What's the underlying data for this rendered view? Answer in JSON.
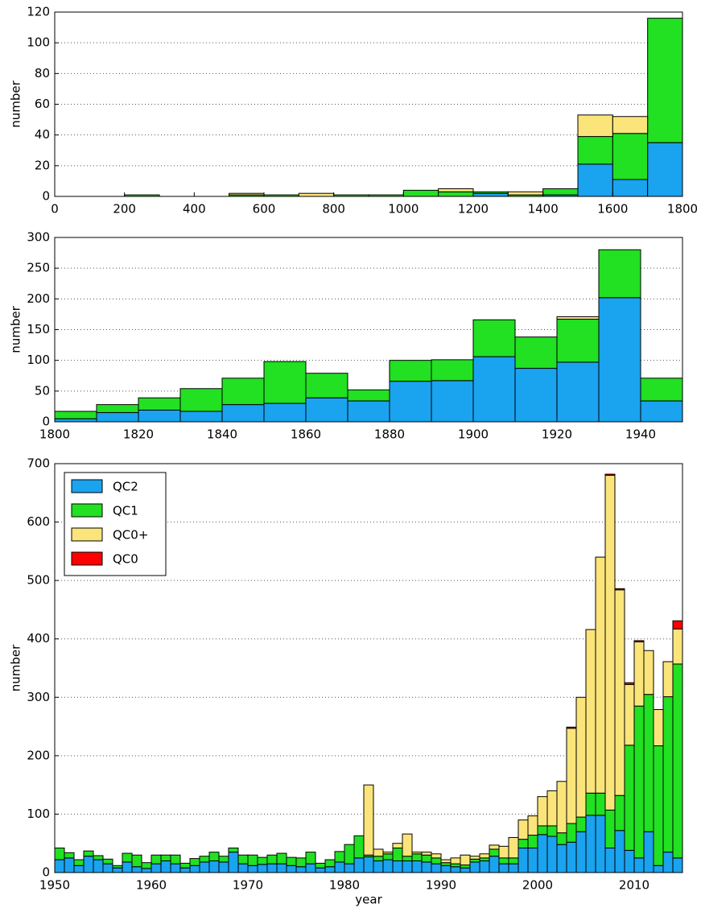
{
  "chart_data": [
    {
      "type": "histogram",
      "ylabel": "number",
      "bins": [
        0,
        100,
        200,
        300,
        400,
        500,
        600,
        700,
        800,
        900,
        1000,
        1100,
        1200,
        1300,
        1400,
        1500,
        1600,
        1700,
        1800
      ],
      "series": [
        {
          "color": "#1aa3ef",
          "values": [
            0,
            0,
            0,
            0,
            0,
            0,
            0,
            0,
            0,
            0,
            0,
            0,
            2,
            0,
            1,
            21,
            11,
            35
          ]
        },
        {
          "color": "#22e022",
          "values": [
            0,
            0,
            1,
            0,
            0,
            1,
            1,
            0,
            1,
            1,
            4,
            3,
            1,
            1,
            4,
            18,
            30,
            81
          ]
        },
        {
          "color": "#fbe57a",
          "values": [
            0,
            0,
            0,
            0,
            0,
            1,
            0,
            2,
            0,
            0,
            0,
            2,
            0,
            2,
            0,
            14,
            11,
            0
          ]
        }
      ],
      "xlim": [
        0,
        1800
      ],
      "xticks": [
        0,
        200,
        400,
        600,
        800,
        1000,
        1200,
        1400,
        1600,
        1800
      ],
      "ylim": [
        0,
        120
      ],
      "yticks": [
        0,
        20,
        40,
        60,
        80,
        100,
        120
      ],
      "grid": true
    },
    {
      "type": "histogram",
      "ylabel": "number",
      "bins": [
        1800,
        1810,
        1820,
        1830,
        1840,
        1850,
        1860,
        1870,
        1880,
        1890,
        1900,
        1910,
        1920,
        1930,
        1940,
        1950
      ],
      "series": [
        {
          "color": "#1aa3ef",
          "values": [
            5,
            15,
            19,
            17,
            28,
            30,
            39,
            34,
            66,
            67,
            106,
            87,
            97,
            202,
            34
          ]
        },
        {
          "color": "#22e022",
          "values": [
            12,
            13,
            20,
            37,
            43,
            68,
            40,
            18,
            34,
            34,
            60,
            51,
            70,
            78,
            37
          ]
        },
        {
          "color": "#fbe57a",
          "values": [
            0,
            0,
            0,
            0,
            0,
            0,
            0,
            0,
            0,
            0,
            0,
            0,
            4,
            0,
            0
          ]
        }
      ],
      "xlim": [
        1800,
        1950
      ],
      "xticks": [
        1800,
        1820,
        1840,
        1860,
        1880,
        1900,
        1920,
        1940
      ],
      "ylim": [
        0,
        300
      ],
      "yticks": [
        0,
        50,
        100,
        150,
        200,
        250,
        300
      ],
      "grid": true
    },
    {
      "type": "histogram",
      "ylabel": "number",
      "xlabel": "year",
      "legend": "upper left",
      "bins": [
        1950,
        1951,
        1952,
        1953,
        1954,
        1955,
        1956,
        1957,
        1958,
        1959,
        1960,
        1961,
        1962,
        1963,
        1964,
        1965,
        1966,
        1967,
        1968,
        1969,
        1970,
        1971,
        1972,
        1973,
        1974,
        1975,
        1976,
        1977,
        1978,
        1979,
        1980,
        1981,
        1982,
        1983,
        1984,
        1985,
        1986,
        1987,
        1988,
        1989,
        1990,
        1991,
        1992,
        1993,
        1994,
        1995,
        1996,
        1997,
        1998,
        1999,
        2000,
        2001,
        2002,
        2003,
        2004,
        2005,
        2006,
        2007,
        2008,
        2009,
        2010,
        2011,
        2012,
        2013,
        2014,
        2015
      ],
      "series": [
        {
          "name": "QC2",
          "color": "#1aa3ef",
          "values": [
            22,
            25,
            12,
            28,
            22,
            15,
            8,
            18,
            10,
            7,
            15,
            20,
            15,
            8,
            12,
            18,
            20,
            18,
            35,
            15,
            12,
            14,
            15,
            15,
            12,
            10,
            15,
            8,
            10,
            18,
            15,
            25,
            27,
            20,
            22,
            20,
            20,
            20,
            18,
            15,
            12,
            10,
            8,
            18,
            20,
            28,
            15,
            15,
            42,
            42,
            65,
            62,
            48,
            52,
            70,
            98,
            98,
            42,
            72,
            38,
            25,
            70,
            12,
            35,
            25
          ]
        },
        {
          "name": "QC1",
          "color": "#22e022",
          "values": [
            20,
            9,
            10,
            9,
            7,
            8,
            4,
            15,
            20,
            10,
            15,
            10,
            15,
            8,
            12,
            10,
            15,
            10,
            7,
            15,
            18,
            12,
            15,
            18,
            14,
            15,
            20,
            8,
            12,
            18,
            33,
            38,
            3,
            8,
            10,
            22,
            8,
            12,
            12,
            10,
            5,
            5,
            5,
            5,
            5,
            12,
            10,
            10,
            15,
            22,
            15,
            18,
            20,
            32,
            25,
            38,
            38,
            65,
            60,
            180,
            260,
            235,
            205,
            266,
            332
          ]
        },
        {
          "name": "QC0+",
          "color": "#fbe57a",
          "values": [
            0,
            0,
            0,
            0,
            0,
            0,
            0,
            0,
            0,
            0,
            0,
            0,
            0,
            0,
            0,
            0,
            0,
            0,
            0,
            0,
            0,
            0,
            0,
            0,
            0,
            0,
            0,
            0,
            0,
            0,
            0,
            0,
            120,
            12,
            3,
            8,
            38,
            3,
            5,
            7,
            5,
            10,
            17,
            5,
            7,
            7,
            20,
            35,
            33,
            33,
            50,
            60,
            88,
            163,
            205,
            280,
            404,
            573,
            352,
            104,
            110,
            75,
            62,
            60,
            60
          ]
        },
        {
          "name": "QC0",
          "color": "#ff0000",
          "values": [
            0,
            0,
            0,
            0,
            0,
            0,
            0,
            0,
            0,
            0,
            0,
            0,
            0,
            0,
            0,
            0,
            0,
            0,
            0,
            0,
            0,
            0,
            0,
            0,
            0,
            0,
            0,
            0,
            0,
            0,
            0,
            0,
            0,
            0,
            0,
            0,
            0,
            0,
            0,
            0,
            0,
            0,
            0,
            0,
            0,
            0,
            0,
            0,
            0,
            0,
            0,
            0,
            0,
            2,
            0,
            0,
            0,
            2,
            2,
            3,
            2,
            0,
            0,
            0,
            14
          ]
        }
      ],
      "xlim": [
        1950,
        2015
      ],
      "xticks": [
        1950,
        1960,
        1970,
        1980,
        1990,
        2000,
        2010
      ],
      "ylim": [
        0,
        700
      ],
      "yticks": [
        0,
        100,
        200,
        300,
        400,
        500,
        600,
        700
      ],
      "grid": true
    }
  ]
}
